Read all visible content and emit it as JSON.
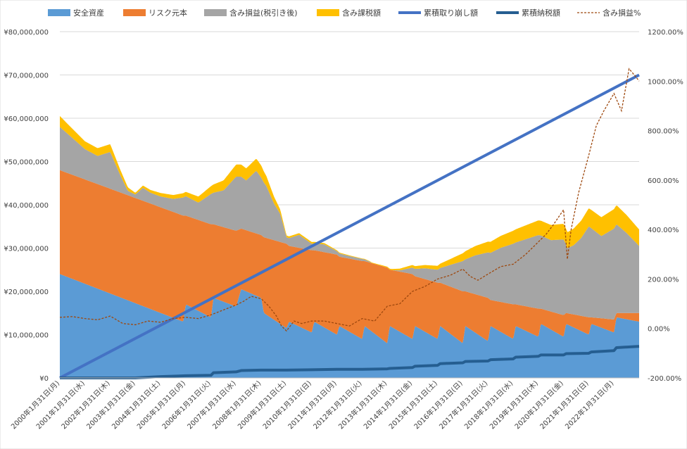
{
  "chart_data": {
    "type": "area",
    "x_start_year": 2000,
    "x_end_year": 2023.0,
    "x_tick_labels": [
      "2000年1月31日(月)",
      "2001年1月31日(水)",
      "2002年1月31日(木)",
      "2003年1月31日(金)",
      "2004年1月31日(土)",
      "2005年1月31日(月)",
      "2006年1月31日(火)",
      "2007年1月31日(水)",
      "2008年1月31日(木)",
      "2009年1月31日(土)",
      "2010年1月31日(日)",
      "2011年1月31日(月)",
      "2012年1月31日(火)",
      "2013年1月31日(木)",
      "2014年1月31日(金)",
      "2015年1月31日(土)",
      "2016年1月31日(日)",
      "2017年1月31日(火)",
      "2018年1月31日(水)",
      "2019年1月31日(木)",
      "2020年1月31日(金)",
      "2021年1月31日(日)",
      "2022年1月31日(月)"
    ],
    "y_left": {
      "min": 0,
      "max": 80000000,
      "tick_labels": [
        "¥0",
        "¥10,000,000",
        "¥20,000,000",
        "¥30,000,000",
        "¥40,000,000",
        "¥50,000,000",
        "¥60,000,000",
        "¥70,000,000",
        "¥80,000,000"
      ]
    },
    "y_right": {
      "min": -200,
      "max": 1200,
      "tick_labels": [
        "-200.00%",
        "0.00%",
        "200.00%",
        "400.00%",
        "600.00%",
        "800.00%",
        "1000.00%",
        "1200.00%"
      ]
    },
    "gridlines": true,
    "legend_position": "top",
    "legend": [
      {
        "name": "安全資産",
        "kind": "area",
        "color": "#5B9BD5"
      },
      {
        "name": "リスク元本",
        "kind": "area",
        "color": "#ED7D31"
      },
      {
        "name": "含み損益(税引き後)",
        "kind": "area",
        "color": "#A5A5A5"
      },
      {
        "name": "含み課税額",
        "kind": "area",
        "color": "#FFC000"
      },
      {
        "name": "累積取り崩し額",
        "kind": "line",
        "color": "#4472C4"
      },
      {
        "name": "累積納税額",
        "kind": "line",
        "color": "#255E91"
      },
      {
        "name": "含み損益%",
        "kind": "dashed",
        "color": "#9E480E"
      }
    ],
    "series": [
      {
        "name": "安全資産",
        "axis": "left",
        "stack": true,
        "x": [
          2000.0,
          2004.9,
          2005.0,
          2006.0,
          2006.1,
          2007.0,
          2007.2,
          2008.0,
          2008.1,
          2009.0,
          2009.1,
          2010.0,
          2010.1,
          2011.0,
          2011.1,
          2012.0,
          2012.1,
          2013.0,
          2013.1,
          2014.0,
          2014.1,
          2015.0,
          2015.1,
          2016.0,
          2016.1,
          2017.0,
          2017.1,
          2018.0,
          2018.1,
          2019.0,
          2019.1,
          2020.0,
          2020.1,
          2021.0,
          2021.1,
          2022.0,
          2022.1,
          2023.0
        ],
        "y": [
          24000000,
          13000000,
          17000000,
          14000000,
          18500000,
          16500000,
          20500000,
          18500000,
          15000000,
          11500000,
          13000000,
          10500000,
          13000000,
          10000000,
          12000000,
          9000000,
          12000000,
          8000000,
          12000000,
          9000000,
          12000000,
          9000000,
          12000000,
          8000000,
          12000000,
          8500000,
          12000000,
          9000000,
          12000000,
          9500000,
          12500000,
          9500000,
          12500000,
          10000000,
          12500000,
          10500000,
          14000000,
          13000000
        ]
      },
      {
        "name": "リスク元本",
        "axis": "left",
        "stack": true,
        "x": [
          2000.0,
          2004.9,
          2005.0,
          2006.0,
          2006.1,
          2007.0,
          2007.2,
          2008.0,
          2008.1,
          2009.0,
          2009.1,
          2010.0,
          2010.1,
          2011.0,
          2011.1,
          2012.0,
          2012.1,
          2013.0,
          2013.1,
          2014.0,
          2014.1,
          2015.0,
          2015.1,
          2016.0,
          2016.1,
          2017.0,
          2017.1,
          2018.0,
          2018.1,
          2019.0,
          2019.1,
          2020.0,
          2020.1,
          2021.0,
          2021.1,
          2022.0,
          2022.1,
          2023.0
        ],
        "y": [
          24000000,
          24500000,
          20500000,
          21500000,
          17000000,
          17500000,
          14000000,
          14500000,
          17500000,
          19500000,
          17500000,
          19000000,
          16500000,
          18500000,
          16000000,
          18000000,
          15000000,
          17500000,
          13000000,
          15000000,
          11500000,
          13000000,
          10000000,
          12000000,
          8000000,
          10000000,
          6000000,
          8000000,
          5000000,
          6500000,
          3500000,
          5000000,
          2500000,
          4000000,
          1500000,
          3000000,
          1000000,
          2000000
        ]
      },
      {
        "name": "含み損益(税引き後)",
        "axis": "left",
        "stack": true,
        "x": [
          2000.0,
          2000.5,
          2001.0,
          2001.5,
          2002.0,
          2002.4,
          2002.7,
          2003.0,
          2003.3,
          2003.6,
          2004.0,
          2004.5,
          2005.0,
          2005.5,
          2006.0,
          2006.5,
          2007.0,
          2007.4,
          2007.8,
          2008.2,
          2008.5,
          2008.75,
          2009.0,
          2009.5,
          2010.0,
          2010.5,
          2011.0,
          2011.5,
          2012.0,
          2012.3,
          2012.6,
          2013.0,
          2013.5,
          2014.0,
          2014.5,
          2015.0,
          2015.5,
          2016.0,
          2016.5,
          2017.0,
          2017.5,
          2018.0,
          2018.5,
          2019.0,
          2019.5,
          2020.0,
          2020.15,
          2020.4,
          2020.7,
          2021.0,
          2021.5,
          2022.0,
          2022.5,
          2023.0
        ],
        "y": [
          10000000,
          8500000,
          7000000,
          6500000,
          8500000,
          4000000,
          1000000,
          800000,
          3000000,
          2500000,
          2500000,
          3000000,
          4500000,
          4000000,
          7000000,
          8500000,
          12500000,
          11500000,
          14500000,
          12000000,
          8500000,
          6500000,
          1500000,
          3000000,
          1500000,
          1800000,
          800000,
          600000,
          500000,
          200000,
          -500000,
          -200000,
          300000,
          1500000,
          2500000,
          3000000,
          5000000,
          7000000,
          9000000,
          10500000,
          12500000,
          14000000,
          15500000,
          17000000,
          16500000,
          17500000,
          15000000,
          16000000,
          18000000,
          21000000,
          19000000,
          21000000,
          18500000,
          15500000
        ]
      },
      {
        "name": "含み課税額",
        "axis": "left",
        "stack": true,
        "x": [
          2000.0,
          2001.0,
          2002.0,
          2003.0,
          2004.0,
          2005.0,
          2006.0,
          2007.0,
          2008.0,
          2009.0,
          2010.0,
          2011.0,
          2012.0,
          2013.0,
          2014.0,
          2015.0,
          2016.0,
          2017.0,
          2018.0,
          2019.0,
          2020.0,
          2021.0,
          2022.0,
          2023.0
        ],
        "y": [
          2500000,
          1800000,
          1800000,
          400000,
          800000,
          1000000,
          1800000,
          2800000,
          2800000,
          400000,
          400000,
          200000,
          100000,
          200000,
          600000,
          900000,
          1800000,
          2500000,
          3000000,
          3400000,
          3600000,
          4200000,
          4500000,
          3800000
        ]
      },
      {
        "name": "累積取り崩し額",
        "axis": "left",
        "stack": false,
        "x": [
          2000.0,
          2023.0
        ],
        "y": [
          0,
          70000000
        ]
      },
      {
        "name": "累積納税額",
        "axis": "left",
        "stack": false,
        "x": [
          2000.0,
          2003.0,
          2004.0,
          2005.0,
          2006.0,
          2006.1,
          2007.0,
          2007.2,
          2008.0,
          2009.0,
          2010.0,
          2011.0,
          2012.0,
          2013.0,
          2013.1,
          2014.0,
          2014.1,
          2015.0,
          2015.1,
          2016.0,
          2016.1,
          2017.0,
          2017.1,
          2018.0,
          2018.1,
          2019.0,
          2019.1,
          2020.0,
          2020.1,
          2021.0,
          2021.1,
          2022.0,
          2022.1,
          2023.0
        ],
        "y": [
          0,
          0,
          300000,
          500000,
          600000,
          1200000,
          1400000,
          1700000,
          1800000,
          1800000,
          1900000,
          2000000,
          2000000,
          2100000,
          2200000,
          2400000,
          2700000,
          2900000,
          3300000,
          3500000,
          3800000,
          3900000,
          4200000,
          4400000,
          4800000,
          5000000,
          5300000,
          5300000,
          5600000,
          5700000,
          6000000,
          6300000,
          7000000,
          7300000
        ]
      },
      {
        "name": "含み損益%",
        "axis": "right",
        "stack": false,
        "style": "dashed",
        "x": [
          2000.0,
          2000.5,
          2001.0,
          2001.5,
          2002.0,
          2002.5,
          2003.0,
          2003.5,
          2004.0,
          2004.5,
          2005.0,
          2005.5,
          2006.0,
          2006.5,
          2007.0,
          2007.3,
          2007.6,
          2008.0,
          2008.3,
          2008.6,
          2008.8,
          2009.0,
          2009.3,
          2009.6,
          2010.0,
          2010.5,
          2011.0,
          2011.5,
          2012.0,
          2012.5,
          2013.0,
          2013.5,
          2014.0,
          2014.5,
          2015.0,
          2015.5,
          2016.0,
          2016.3,
          2016.6,
          2017.0,
          2017.5,
          2018.0,
          2018.5,
          2019.0,
          2019.3,
          2019.6,
          2020.0,
          2020.15,
          2020.3,
          2020.6,
          2021.0,
          2021.3,
          2021.6,
          2022.0,
          2022.3,
          2022.6,
          2022.85,
          2023.0
        ],
        "y": [
          45,
          48,
          40,
          35,
          50,
          20,
          15,
          30,
          25,
          40,
          45,
          40,
          55,
          75,
          95,
          110,
          130,
          120,
          90,
          50,
          10,
          -10,
          30,
          20,
          30,
          30,
          20,
          10,
          40,
          30,
          90,
          100,
          150,
          170,
          200,
          215,
          240,
          210,
          195,
          220,
          250,
          260,
          300,
          350,
          380,
          420,
          480,
          280,
          400,
          550,
          700,
          820,
          880,
          950,
          880,
          1050,
          1020,
          1000
        ]
      }
    ]
  }
}
